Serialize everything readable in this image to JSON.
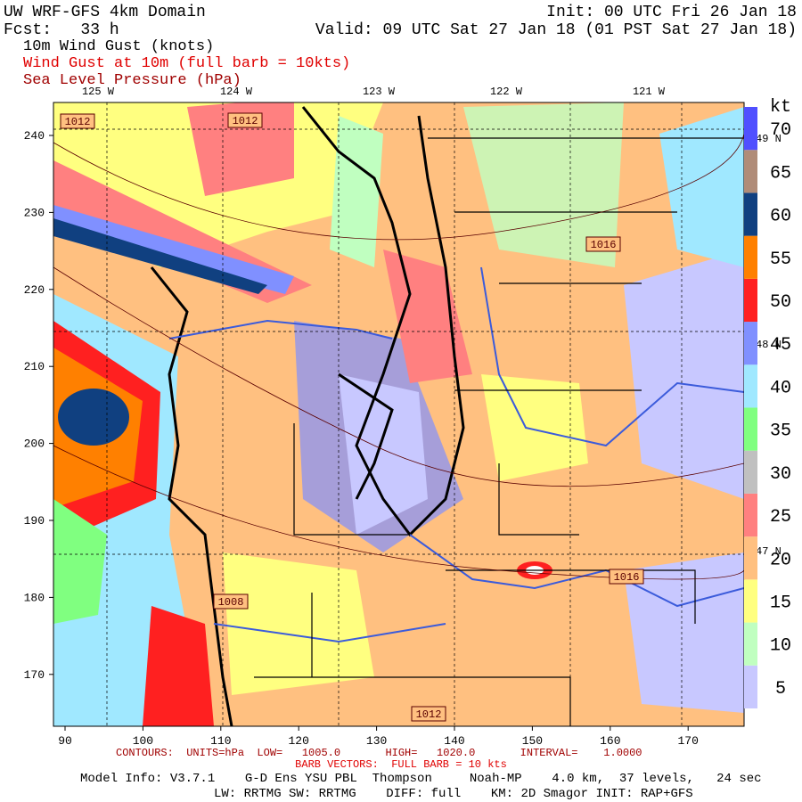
{
  "header": {
    "left": [
      "UW WRF-GFS 4km Domain",
      "Fcst:   33 h"
    ],
    "right": [
      "Init: 00 UTC Fri 26 Jan 18",
      "Valid: 09 UTC Sat 27 Jan 18 (01 PST Sat 27 Jan 18)"
    ],
    "fields": [
      {
        "text": "10m Wind Gust (knots)",
        "color": "#000000"
      },
      {
        "text": "Wind Gust at 10m (full barb = 10kts)",
        "color": "#e00000"
      },
      {
        "text": "Sea Level Pressure (hPa)",
        "color": "#a00000"
      }
    ]
  },
  "map": {
    "lon_labels": [
      "125 W",
      "124 W",
      "123 W",
      "122 W",
      "121 W"
    ],
    "lat_labels": [
      "49 N",
      "48 N",
      "47 N"
    ],
    "x_ticks": [
      90,
      100,
      110,
      120,
      130,
      140,
      150,
      160,
      170
    ],
    "y_ticks": [
      170,
      180,
      190,
      200,
      210,
      220,
      230,
      240
    ],
    "isobar_labels": [
      "1012",
      "1012",
      "1016",
      "1016",
      "1008",
      "1012"
    ]
  },
  "colorbar": {
    "unit": "kt",
    "levels": [
      5,
      10,
      15,
      20,
      25,
      30,
      35,
      40,
      45,
      50,
      55,
      60,
      65,
      70
    ],
    "colors": [
      "#c8c8ff",
      "#c0ffc0",
      "#ffff80",
      "#ffc080",
      "#ff8080",
      "#c0c0c0",
      "#80ff80",
      "#a0e8ff",
      "#8090ff",
      "#ff2020",
      "#ff8000",
      "#104080",
      "#b08c78",
      "#5050ff"
    ]
  },
  "footer": {
    "contours": "CONTOURS:  UNITS=hPa  LOW=   1005.0       HIGH=   1020.0       INTERVAL=    1.0000",
    "barbs": "BARB VECTORS:  FULL BARB = 10 kts",
    "model": [
      "Model Info: V3.7.1    G-D Ens YSU PBL  Thompson     Noah-MP    4.0 km,  37 levels,   24 sec",
      "LW: RRTMG SW: RRTMG    DIFF: full    KM: 2D Smagor INIT: RAP+GFS"
    ]
  }
}
